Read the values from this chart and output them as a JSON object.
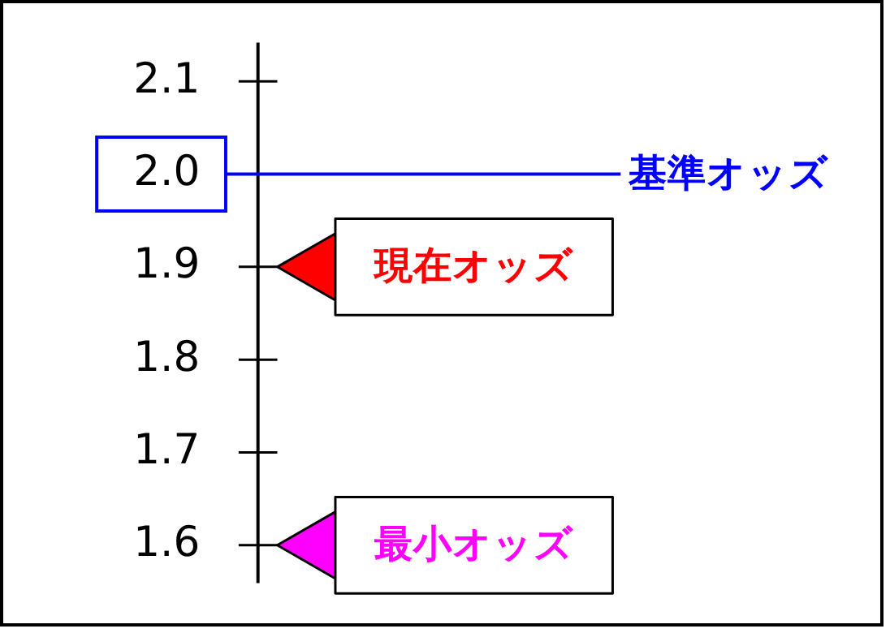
{
  "chart_data": {
    "type": "scatter",
    "categories": [
      null
    ],
    "series": [
      {
        "name": "現在オッズ",
        "color": "#ff0000",
        "values": [
          1.9
        ]
      },
      {
        "name": "最小オッズ",
        "color": "#ff00ff",
        "values": [
          1.6
        ]
      }
    ],
    "ylim": [
      1.56,
      2.14
    ],
    "yticks": [
      1.6,
      1.7,
      1.8,
      1.9,
      {
        "value": 2,
        "label": "2.0"
      },
      2.1
    ],
    "ref_lines": [
      {
        "axis": "y",
        "value": 2,
        "label": "基準オッズ",
        "color": "#0000ff"
      }
    ],
    "grid": false,
    "legend": false,
    "tick_labels": "y",
    "marker": "triangle"
  }
}
